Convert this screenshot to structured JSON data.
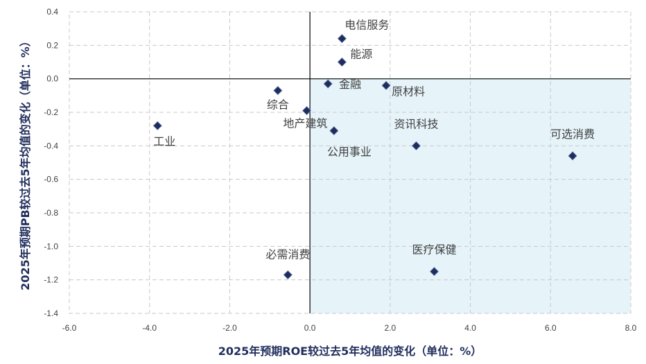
{
  "chart_data": {
    "type": "scatter",
    "xlabel": "2025年预期ROE较过去5年均值的变化（单位：%）",
    "ylabel": "2025年预期PB较过去5年均值的变化（单位：%）",
    "xlim": [
      -6.0,
      8.0
    ],
    "ylim": [
      -1.4,
      0.4
    ],
    "xticks": [
      -6.0,
      -4.0,
      -2.0,
      0.0,
      2.0,
      4.0,
      6.0,
      8.0
    ],
    "yticks": [
      0.4,
      0.2,
      0.0,
      -0.2,
      -0.4,
      -0.6,
      -0.8,
      -1.0,
      -1.2,
      -1.4
    ],
    "xtick_labels": [
      "-6.0",
      "-4.0",
      "-2.0",
      "0.0",
      "2.0",
      "4.0",
      "6.0",
      "8.0"
    ],
    "ytick_labels": [
      "0.4",
      "0.2",
      "0.0",
      "-0.2",
      "-0.4",
      "-0.6",
      "-0.8",
      "-1.0",
      "-1.2",
      "-1.4"
    ],
    "grid": true,
    "highlight_quadrant": "bottom-right",
    "colors": {
      "marker": "#1f2d5c",
      "highlight": "#e6f4fa",
      "grid": "#c8c8c8",
      "axis_title": "#1f2d5c"
    },
    "points": [
      {
        "label": "电信服务",
        "x": 0.8,
        "y": 0.24
      },
      {
        "label": "能源",
        "x": 0.8,
        "y": 0.1
      },
      {
        "label": "金融",
        "x": 0.45,
        "y": -0.03
      },
      {
        "label": "原材料",
        "x": 1.9,
        "y": -0.04
      },
      {
        "label": "综合",
        "x": -0.8,
        "y": -0.07
      },
      {
        "label": "地产建筑",
        "x": -0.08,
        "y": -0.19
      },
      {
        "label": "公用事业",
        "x": 0.6,
        "y": -0.31
      },
      {
        "label": "工业",
        "x": -3.8,
        "y": -0.28
      },
      {
        "label": "资讯科技",
        "x": 2.65,
        "y": -0.4
      },
      {
        "label": "可选消费",
        "x": 6.55,
        "y": -0.46
      },
      {
        "label": "必需消费",
        "x": -0.55,
        "y": -1.17
      },
      {
        "label": "医疗保健",
        "x": 3.1,
        "y": -1.15
      }
    ]
  }
}
